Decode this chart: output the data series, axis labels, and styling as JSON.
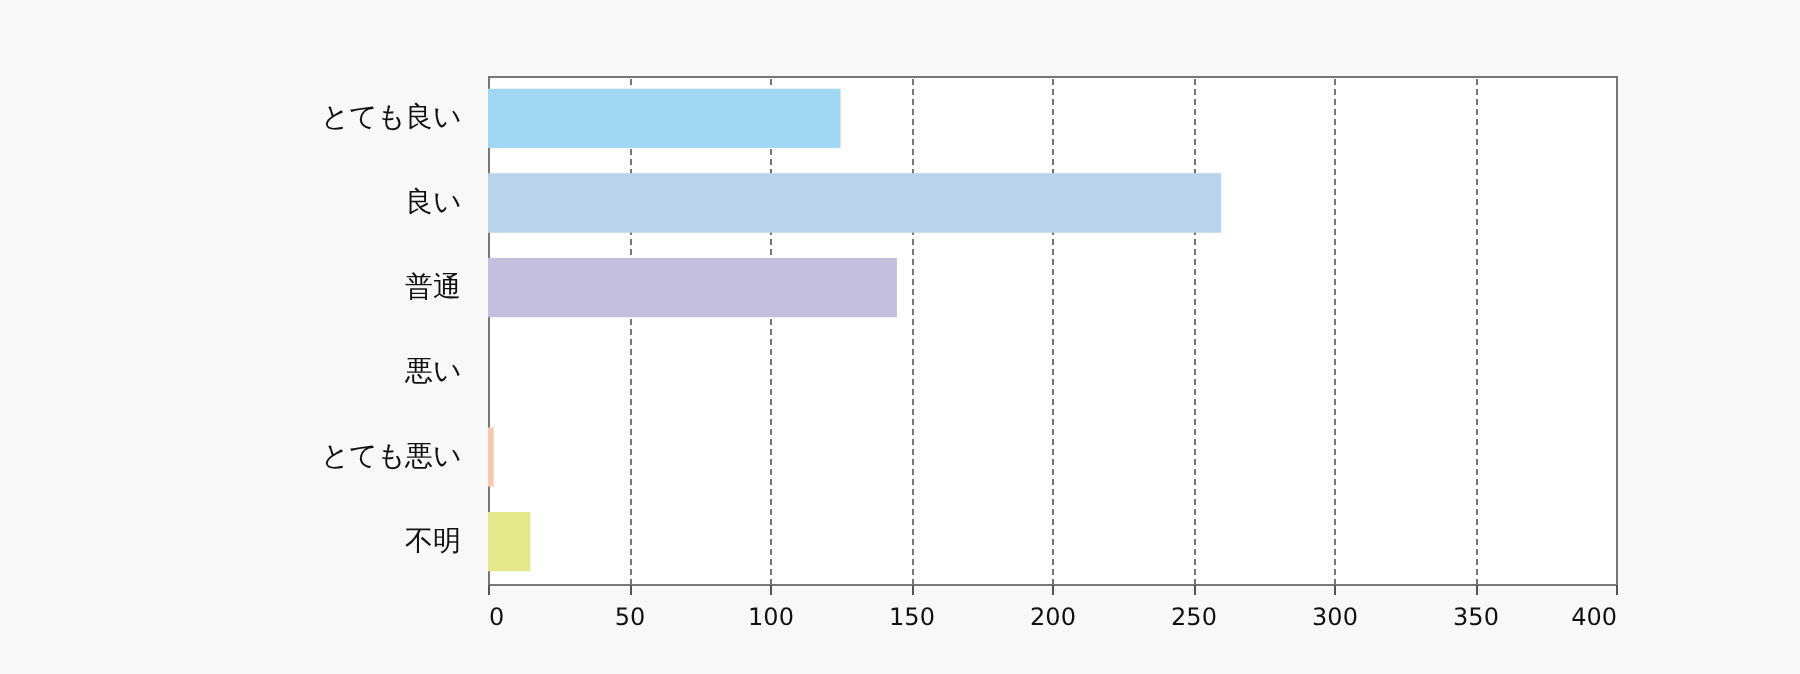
{
  "chart_data": {
    "type": "bar",
    "orientation": "horizontal",
    "categories": [
      "とても良い",
      "良い",
      "普通",
      "悪い",
      "とても悪い",
      "不明"
    ],
    "values": [
      125,
      260,
      145,
      0,
      2,
      15
    ],
    "colors": [
      "#a0d8f3",
      "#b9d3ec",
      "#c4bedf",
      "#f5b3c8",
      "#f9c7b0",
      "#e6e88c"
    ],
    "xlim": [
      0,
      400
    ],
    "xticks": [
      0,
      50,
      100,
      150,
      200,
      250,
      300,
      350,
      400
    ],
    "grid": "x"
  }
}
